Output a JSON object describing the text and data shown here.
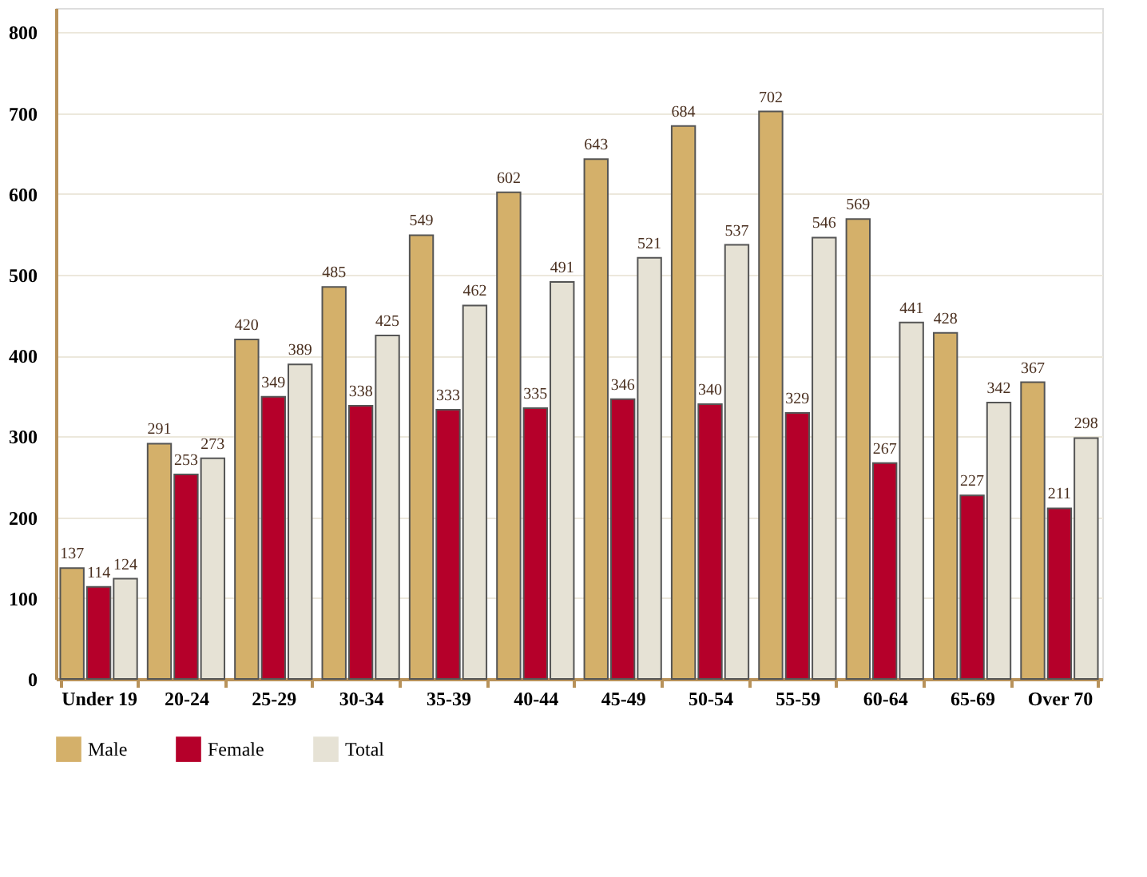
{
  "chart_data": {
    "type": "bar",
    "categories": [
      "Under 19",
      "20-24",
      "25-29",
      "30-34",
      "35-39",
      "40-44",
      "45-49",
      "50-54",
      "55-59",
      "60-64",
      "65-69",
      "Over 70"
    ],
    "series": [
      {
        "name": "Male",
        "color": "#d4b06a",
        "values": [
          137,
          291,
          420,
          485,
          549,
          602,
          643,
          684,
          702,
          569,
          428,
          367
        ]
      },
      {
        "name": "Female",
        "color": "#b5002a",
        "values": [
          114,
          253,
          349,
          338,
          333,
          335,
          346,
          340,
          329,
          267,
          227,
          211
        ]
      },
      {
        "name": "Total",
        "color": "#e6e2d5",
        "values": [
          124,
          273,
          389,
          425,
          462,
          491,
          521,
          537,
          546,
          441,
          342,
          298
        ]
      }
    ],
    "ylim": [
      0,
      830
    ],
    "yticks": [
      0,
      100,
      200,
      300,
      400,
      500,
      600,
      700,
      800
    ],
    "grid": "y",
    "legend": "bottom",
    "data_labels": true
  }
}
